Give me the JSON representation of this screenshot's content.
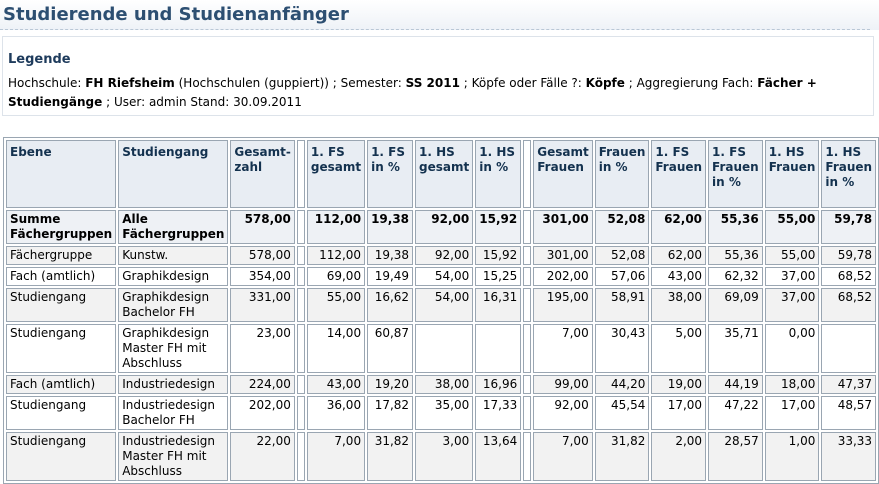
{
  "page": {
    "title": "Studierende und Studienanfänger"
  },
  "legend": {
    "heading": "Legende",
    "hochschule_label": "Hochschule:",
    "hochschule_value": "FH Riefsheim",
    "hochschule_note": "(Hochschulen (guppiert)) ; Semester:",
    "semester_value": "SS 2011",
    "koepfe_label": "; Köpfe oder Fälle ?:",
    "koepfe_value": "Köpfe",
    "aggregierung_label": "; Aggregierung Fach:",
    "aggregierung_value": "Fächer + Studiengänge",
    "user_stand": "; User: admin  Stand: 30.09.2011"
  },
  "table": {
    "headers": [
      "Ebene",
      "Studiengang",
      "Gesamt-zahl",
      "",
      "1. FS gesamt",
      "1. FS in %",
      "1. HS gesamt",
      "1. HS in %",
      "",
      "Gesamt Frauen",
      "Frauen in %",
      "1. FS Frauen",
      "1. FS Frauen in %",
      "1. HS Frauen",
      "1. HS Frauen in %"
    ],
    "rows": [
      {
        "type": "sum",
        "ebene": "Summe Fächergruppen",
        "studiengang": "Alle Fächergruppen",
        "gesamtzahl": "578,00",
        "fs1_gesamt": "112,00",
        "fs1_pct": "19,38",
        "hs1_gesamt": "92,00",
        "hs1_pct": "15,92",
        "gesamt_frauen": "301,00",
        "frauen_pct": "52,08",
        "fs1_frauen": "62,00",
        "fs1_frauen_pct": "55,36",
        "hs1_frauen": "55,00",
        "hs1_frauen_pct": "59,78"
      },
      {
        "type": "even",
        "ebene": "Fächergruppe",
        "studiengang": "Kunstw.",
        "gesamtzahl": "578,00",
        "fs1_gesamt": "112,00",
        "fs1_pct": "19,38",
        "hs1_gesamt": "92,00",
        "hs1_pct": "15,92",
        "gesamt_frauen": "301,00",
        "frauen_pct": "52,08",
        "fs1_frauen": "62,00",
        "fs1_frauen_pct": "55,36",
        "hs1_frauen": "55,00",
        "hs1_frauen_pct": "59,78"
      },
      {
        "type": "odd",
        "ebene": "Fach (amtlich)",
        "studiengang": "Graphikdesign",
        "gesamtzahl": "354,00",
        "fs1_gesamt": "69,00",
        "fs1_pct": "19,49",
        "hs1_gesamt": "54,00",
        "hs1_pct": "15,25",
        "gesamt_frauen": "202,00",
        "frauen_pct": "57,06",
        "fs1_frauen": "43,00",
        "fs1_frauen_pct": "62,32",
        "hs1_frauen": "37,00",
        "hs1_frauen_pct": "68,52"
      },
      {
        "type": "even",
        "ebene": "Studiengang",
        "studiengang": "Graphikdesign Bachelor FH",
        "gesamtzahl": "331,00",
        "fs1_gesamt": "55,00",
        "fs1_pct": "16,62",
        "hs1_gesamt": "54,00",
        "hs1_pct": "16,31",
        "gesamt_frauen": "195,00",
        "frauen_pct": "58,91",
        "fs1_frauen": "38,00",
        "fs1_frauen_pct": "69,09",
        "hs1_frauen": "37,00",
        "hs1_frauen_pct": "68,52"
      },
      {
        "type": "odd",
        "ebene": "Studiengang",
        "studiengang": "Graphikdesign Master FH mit Abschluss",
        "gesamtzahl": "23,00",
        "fs1_gesamt": "14,00",
        "fs1_pct": "60,87",
        "hs1_gesamt": "",
        "hs1_pct": "",
        "gesamt_frauen": "7,00",
        "frauen_pct": "30,43",
        "fs1_frauen": "5,00",
        "fs1_frauen_pct": "35,71",
        "hs1_frauen": "0,00",
        "hs1_frauen_pct": ""
      },
      {
        "type": "even",
        "ebene": "Fach (amtlich)",
        "studiengang": "Industriedesign",
        "gesamtzahl": "224,00",
        "fs1_gesamt": "43,00",
        "fs1_pct": "19,20",
        "hs1_gesamt": "38,00",
        "hs1_pct": "16,96",
        "gesamt_frauen": "99,00",
        "frauen_pct": "44,20",
        "fs1_frauen": "19,00",
        "fs1_frauen_pct": "44,19",
        "hs1_frauen": "18,00",
        "hs1_frauen_pct": "47,37"
      },
      {
        "type": "odd",
        "ebene": "Studiengang",
        "studiengang": "Industriedesign Bachelor FH",
        "gesamtzahl": "202,00",
        "fs1_gesamt": "36,00",
        "fs1_pct": "17,82",
        "hs1_gesamt": "35,00",
        "hs1_pct": "17,33",
        "gesamt_frauen": "92,00",
        "frauen_pct": "45,54",
        "fs1_frauen": "17,00",
        "fs1_frauen_pct": "47,22",
        "hs1_frauen": "17,00",
        "hs1_frauen_pct": "48,57"
      },
      {
        "type": "even",
        "ebene": "Studiengang",
        "studiengang": "Industriedesign Master FH mit Abschluss",
        "gesamtzahl": "22,00",
        "fs1_gesamt": "7,00",
        "fs1_pct": "31,82",
        "hs1_gesamt": "3,00",
        "hs1_pct": "13,64",
        "gesamt_frauen": "7,00",
        "frauen_pct": "31,82",
        "fs1_frauen": "2,00",
        "fs1_frauen_pct": "28,57",
        "hs1_frauen": "1,00",
        "hs1_frauen_pct": "33,33"
      }
    ]
  }
}
